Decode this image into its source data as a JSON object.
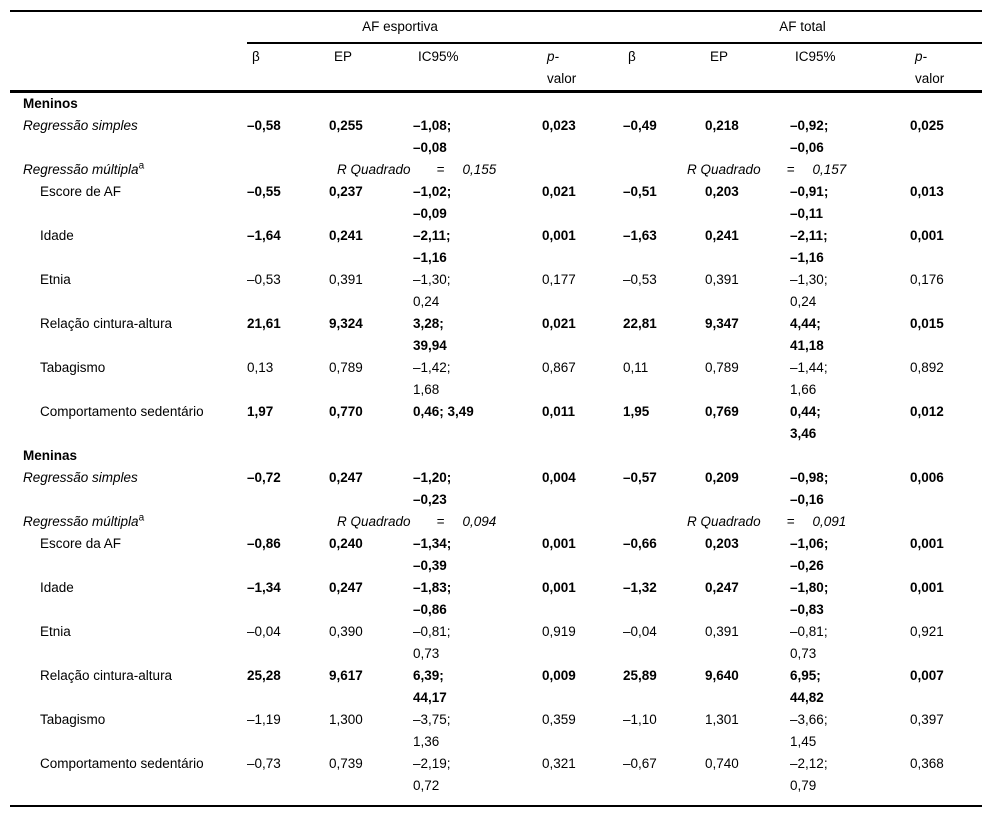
{
  "header": {
    "groups": [
      "AF esportiva",
      "AF total"
    ],
    "beta": "β",
    "ep": "EP",
    "ic": "IC95%",
    "p_line1": "p-",
    "p_line2": "valor"
  },
  "rows": [
    {
      "type": "section",
      "label": "Meninos"
    },
    {
      "type": "data",
      "italic": true,
      "indent": false,
      "bold": true,
      "label": "Regressão simples",
      "cells": [
        "–0,58",
        "0,255",
        "–1,08;\n–0,08",
        "0,023",
        "–0,49",
        "0,218",
        "–0,92;\n–0,06",
        "0,025"
      ]
    },
    {
      "type": "rsq",
      "label": "Regressão múltipla",
      "sup": "a",
      "left": {
        "label": "R Quadrado",
        "eq": "=",
        "value": "0,155"
      },
      "right": {
        "label": "R Quadrado",
        "eq": "=",
        "value": "0,157"
      }
    },
    {
      "type": "data",
      "indent": true,
      "bold": true,
      "label": "Escore de AF",
      "cells": [
        "–0,55",
        "0,237",
        "–1,02;\n–0,09",
        "0,021",
        "–0,51",
        "0,203",
        "–0,91;\n–0,11",
        "0,013"
      ]
    },
    {
      "type": "data",
      "indent": true,
      "bold": true,
      "label": "Idade",
      "cells": [
        "–1,64",
        "0,241",
        "–2,11;\n–1,16",
        "0,001",
        "–1,63",
        "0,241",
        "–2,11;\n–1,16",
        "0,001"
      ]
    },
    {
      "type": "data",
      "indent": true,
      "bold": false,
      "label": "Etnia",
      "cells": [
        "–0,53",
        "0,391",
        "–1,30;\n0,24",
        "0,177",
        "–0,53",
        "0,391",
        "–1,30;\n0,24",
        "0,176"
      ]
    },
    {
      "type": "data",
      "indent": true,
      "bold": true,
      "label": "Relação cintura-altura",
      "cells": [
        "21,61",
        "9,324",
        "3,28;\n39,94",
        "0,021",
        "22,81",
        "9,347",
        "4,44;\n41,18",
        "0,015"
      ]
    },
    {
      "type": "data",
      "indent": true,
      "bold": false,
      "label": "Tabagismo",
      "cells": [
        "0,13",
        "0,789",
        "–1,42;\n1,68",
        "0,867",
        "0,11",
        "0,789",
        "–1,44;\n1,66",
        "0,892"
      ]
    },
    {
      "type": "data",
      "indent": true,
      "bold": true,
      "label": "Comportamento sedentário",
      "cells": [
        "1,97",
        "0,770",
        "0,46; 3,49",
        "0,011",
        "1,95",
        "0,769",
        "0,44;\n3,46",
        "0,012"
      ]
    },
    {
      "type": "section",
      "label": "Meninas"
    },
    {
      "type": "data",
      "italic": true,
      "indent": false,
      "bold": true,
      "label": "Regressão simples",
      "cells": [
        "–0,72",
        "0,247",
        "–1,20;\n–0,23",
        "0,004",
        "–0,57",
        "0,209",
        "–0,98;\n–0,16",
        "0,006"
      ]
    },
    {
      "type": "rsq",
      "label": "Regressão múltipla",
      "sup": "a",
      "left": {
        "label": "R Quadrado",
        "eq": "=",
        "value": "0,094"
      },
      "right": {
        "label": "R Quadrado",
        "eq": "=",
        "value": "0,091"
      }
    },
    {
      "type": "data",
      "indent": true,
      "bold": true,
      "label": "Escore da AF",
      "cells": [
        "–0,86",
        "0,240",
        "–1,34;\n–0,39",
        "0,001",
        "–0,66",
        "0,203",
        "–1,06;\n–0,26",
        "0,001"
      ]
    },
    {
      "type": "data",
      "indent": true,
      "bold": true,
      "label": "Idade",
      "cells": [
        "–1,34",
        "0,247",
        "–1,83;\n–0,86",
        "0,001",
        "–1,32",
        "0,247",
        "–1,80;\n–0,83",
        "0,001"
      ]
    },
    {
      "type": "data",
      "indent": true,
      "bold": false,
      "label": "Etnia",
      "cells": [
        "–0,04",
        "0,390",
        "–0,81;\n0,73",
        "0,919",
        "–0,04",
        "0,391",
        "–0,81;\n0,73",
        "0,921"
      ]
    },
    {
      "type": "data",
      "indent": true,
      "bold": true,
      "label": "Relação cintura-altura",
      "cells": [
        "25,28",
        "9,617",
        "6,39;\n44,17",
        "0,009",
        "25,89",
        "9,640",
        "6,95;\n44,82",
        "0,007"
      ]
    },
    {
      "type": "data",
      "indent": true,
      "bold": false,
      "label": "Tabagismo",
      "cells": [
        "–1,19",
        "1,300",
        "–3,75;\n1,36",
        "0,359",
        "–1,10",
        "1,301",
        "–3,66;\n1,45",
        "0,397"
      ]
    },
    {
      "type": "data",
      "indent": true,
      "bold": false,
      "label": "Comportamento sedentário",
      "cells": [
        "–0,73",
        "0,739",
        "–2,19;\n0,72",
        "0,321",
        "–0,67",
        "0,740",
        "–2,12;\n0,79",
        "0,368"
      ]
    }
  ]
}
